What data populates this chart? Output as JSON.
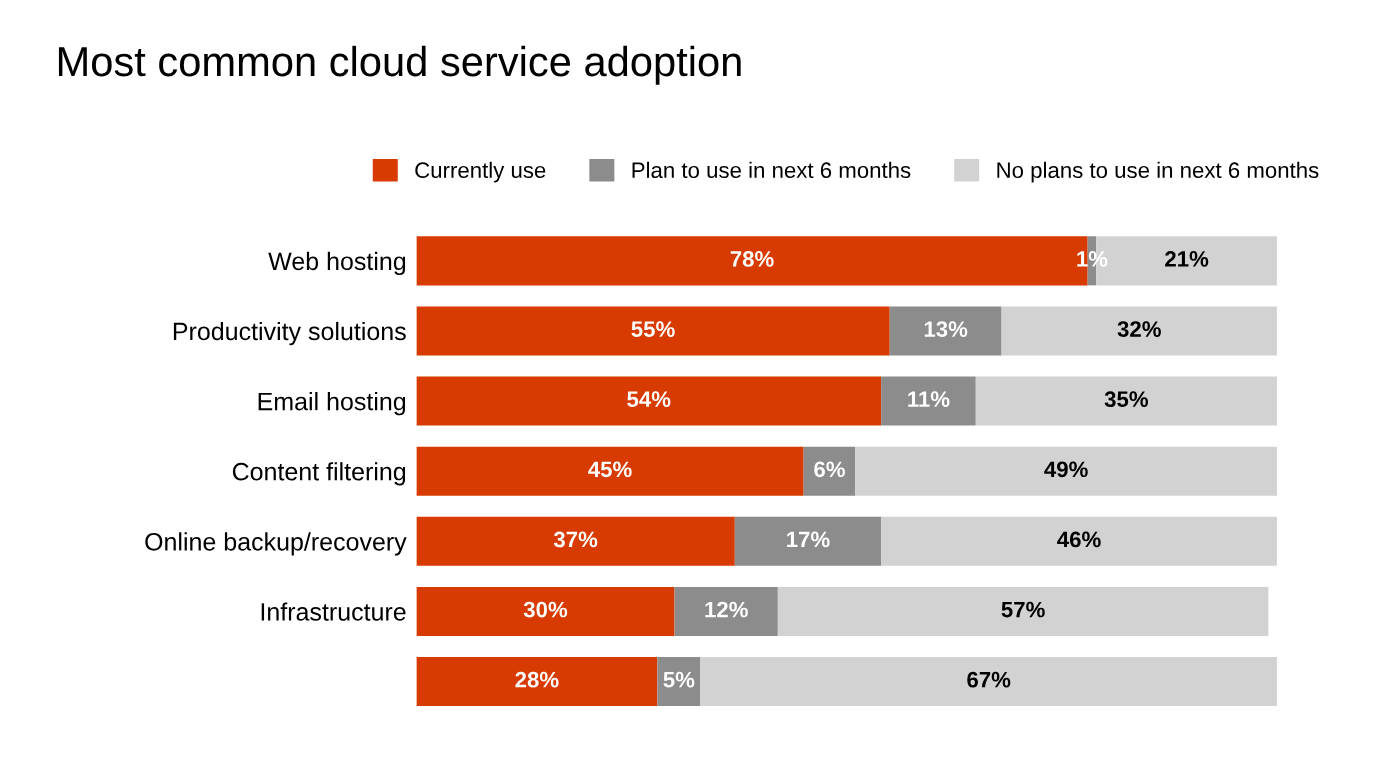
{
  "chart_data": {
    "type": "bar",
    "orientation": "horizontal",
    "stacked": true,
    "title": "Most common cloud service adoption",
    "categories": [
      "Web hosting",
      "Productivity solutions",
      "Email hosting",
      "Content filtering",
      "Online backup/recovery",
      "Infrastructure",
      null
    ],
    "series": [
      {
        "name": "Currently use",
        "color": "#d83b01",
        "values": [
          78,
          55,
          54,
          45,
          37,
          30,
          28
        ],
        "value_labels": [
          "78%",
          "55%",
          "54%",
          "45%",
          "37%",
          "30%",
          "28%"
        ]
      },
      {
        "name": "Plan to use in next 6 months",
        "color": "#8c8c8c",
        "values": [
          1,
          13,
          11,
          6,
          17,
          12,
          5
        ],
        "value_labels": [
          "1%",
          "13%",
          "11%",
          "6%",
          "17%",
          "12%",
          "5%"
        ]
      },
      {
        "name": "No plans to use in next 6 months",
        "color": "#d2d2d2",
        "values": [
          21,
          32,
          35,
          49,
          46,
          57,
          67
        ],
        "value_labels": [
          "21%",
          "32%",
          "35%",
          "49%",
          "46%",
          "57%",
          "67%"
        ]
      }
    ],
    "legend": "top"
  }
}
